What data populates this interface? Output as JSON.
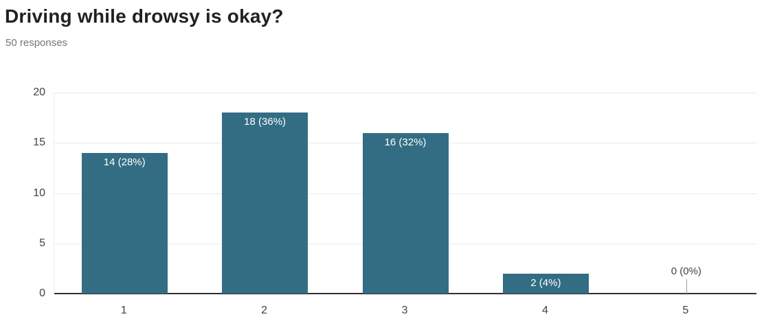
{
  "header": {
    "title": "Driving while drowsy is okay?",
    "subtitle": "50 responses"
  },
  "chart_data": {
    "type": "bar",
    "title": "Driving while drowsy is okay?",
    "subtitle": "50 responses",
    "total_responses": 50,
    "categories": [
      "1",
      "2",
      "3",
      "4",
      "5"
    ],
    "values": [
      14,
      18,
      16,
      2,
      0
    ],
    "percentages": [
      28,
      36,
      32,
      4,
      0
    ],
    "bar_labels": [
      "14 (28%)",
      "18 (36%)",
      "16 (32%)",
      "2 (4%)",
      "0 (0%)"
    ],
    "xlabel": "",
    "ylabel": "",
    "ylim": [
      0,
      20
    ],
    "yticks": [
      0,
      5,
      10,
      15,
      20
    ],
    "grid": true,
    "legend": "none",
    "colors": {
      "bar": "#336d84",
      "bar_label_text": "#ffffff",
      "zero_label_text": "#3f4245",
      "zero_stem": "#9e9e9e",
      "title_text": "#212121",
      "subtitle_text": "#757575",
      "axis_label_text": "#3f4245",
      "gridline": "#e9e9e9",
      "baseline": "#2f2f2f",
      "background": "#ffffff"
    }
  }
}
